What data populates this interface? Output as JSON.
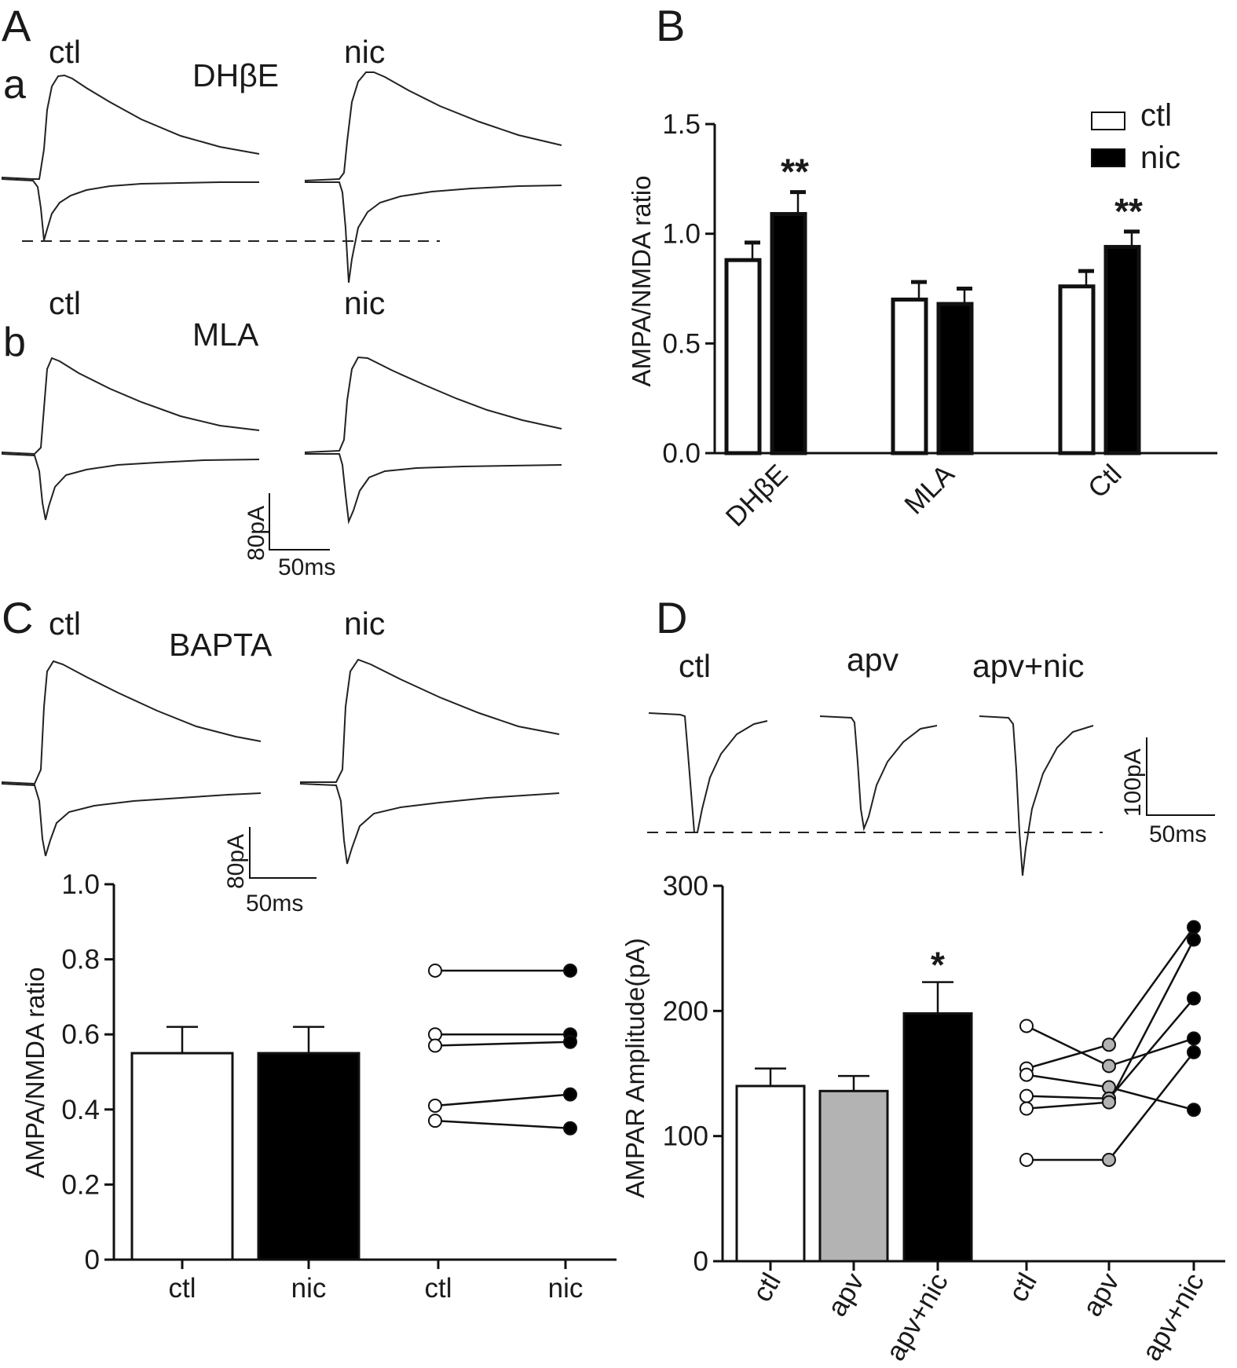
{
  "panels": {
    "A": {
      "label": "A",
      "a": {
        "label": "a",
        "drug": "DHβE",
        "ctl": "ctl",
        "nic": "nic"
      },
      "b": {
        "label": "b",
        "drug": "MLA",
        "ctl": "ctl",
        "nic": "nic"
      },
      "scale": {
        "y": "80pA",
        "x": "50ms"
      }
    },
    "B": {
      "label": "B"
    },
    "C": {
      "label": "C",
      "drug": "BAPTA",
      "ctl": "ctl",
      "nic": "nic",
      "scale": {
        "y": "80pA",
        "x": "50ms"
      }
    },
    "D": {
      "label": "D",
      "cond1": "ctl",
      "cond2": "apv",
      "cond3": "apv+nic",
      "scale": {
        "y": "100pA",
        "x": "50ms"
      }
    }
  },
  "chart_data": [
    {
      "id": "B",
      "type": "bar",
      "ylabel": "AMPA/NMDA ratio",
      "ylim": [
        0,
        1.5
      ],
      "yticks": [
        "0.0",
        "0.5",
        "1.0",
        "1.5"
      ],
      "categories": [
        "DHβE",
        "MLA",
        "Ctl"
      ],
      "series": [
        {
          "name": "ctl",
          "color": "#ffffff",
          "values": [
            0.88,
            0.7,
            0.76
          ],
          "errors": [
            0.08,
            0.08,
            0.07
          ]
        },
        {
          "name": "nic",
          "color": "#000000",
          "values": [
            1.09,
            0.68,
            0.94
          ],
          "errors": [
            0.1,
            0.07,
            0.07
          ]
        }
      ],
      "annotations": [
        {
          "category": "DHβE",
          "series": "nic",
          "text": "**"
        },
        {
          "category": "Ctl",
          "series": "nic",
          "text": "**"
        }
      ],
      "legend": "top-right"
    },
    {
      "id": "C",
      "type": "bar",
      "ylabel": "AMPA/NMDA ratio",
      "ylim": [
        0,
        1.0
      ],
      "yticks": [
        "0",
        "0.2",
        "0.4",
        "0.6",
        "0.8",
        "1.0"
      ],
      "categories": [
        "ctl",
        "nic",
        "ctl",
        "nic"
      ],
      "bars": [
        {
          "label": "ctl",
          "value": 0.55,
          "error": 0.07,
          "color": "#ffffff"
        },
        {
          "label": "nic",
          "value": 0.55,
          "error": 0.07,
          "color": "#000000"
        }
      ],
      "paired": {
        "ctl": [
          0.77,
          0.6,
          0.57,
          0.41,
          0.37
        ],
        "nic": [
          0.77,
          0.6,
          0.58,
          0.44,
          0.35
        ]
      }
    },
    {
      "id": "D",
      "type": "bar",
      "ylabel": "AMPAR Amplitude(pA)",
      "ylim": [
        0,
        300
      ],
      "yticks": [
        "0",
        "100",
        "200",
        "300"
      ],
      "categories": [
        "ctl",
        "apv",
        "apv+nic",
        "ctl",
        "apv",
        "apv+nic"
      ],
      "bars": [
        {
          "label": "ctl",
          "value": 140,
          "error": 14,
          "color": "#ffffff"
        },
        {
          "label": "apv",
          "value": 136,
          "error": 12,
          "color": "#b3b3b3"
        },
        {
          "label": "apv+nic",
          "value": 198,
          "error": 25,
          "color": "#000000"
        }
      ],
      "annotations": [
        {
          "bar": "apv+nic",
          "text": "*"
        }
      ],
      "paired": {
        "ctl": [
          188,
          154,
          149,
          132,
          122,
          81
        ],
        "apv": [
          173,
          156,
          139,
          130,
          127,
          81
        ],
        "apv+nic": [
          267,
          257,
          210,
          178,
          167,
          121
        ]
      },
      "links": [
        [
          0,
          1,
          3
        ],
        [
          1,
          0,
          0
        ],
        [
          2,
          2,
          5
        ],
        [
          3,
          3,
          2
        ],
        [
          4,
          4,
          1
        ],
        [
          5,
          5,
          4
        ]
      ]
    }
  ]
}
